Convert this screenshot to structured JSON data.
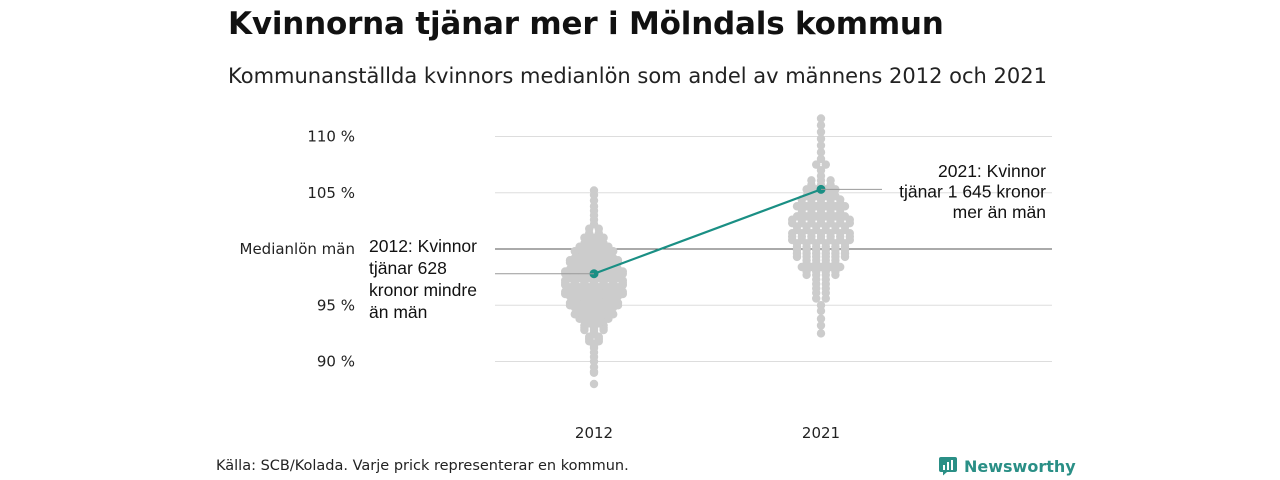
{
  "title": "Kvinnorna tjänar mer i Mölndals kommun",
  "subtitle": "Kommunanställda kvinnors medianlön som andel av männens 2012 och 2021",
  "source": "Källa: SCB/Kolada. Varje prick representerar en kommun.",
  "brand": "Newsworthy",
  "colors": {
    "dots": "#cccccc",
    "highlight": "#1a8f84",
    "grid": "#dddddd",
    "refline": "#555555",
    "brand": "#2a8f86"
  },
  "chart_data": {
    "type": "scatter",
    "subtype": "beeswarm",
    "categories": [
      "2012",
      "2021"
    ],
    "y_ticks": [
      {
        "value": 90,
        "label": "90 %"
      },
      {
        "value": 95,
        "label": "95 %"
      },
      {
        "value": 100,
        "label": "Medianlön män"
      },
      {
        "value": 105,
        "label": "105 %"
      },
      {
        "value": 110,
        "label": "110 %"
      }
    ],
    "ylim": [
      86,
      111.5
    ],
    "grid": true,
    "highlight": {
      "name": "Mölndal",
      "values": [
        97.8,
        105.3
      ]
    },
    "distributions": [
      {
        "category": "2012",
        "values": [
          88.0,
          89.0,
          89.1,
          89.5,
          90.0,
          90.4,
          90.8,
          91.2,
          91.4,
          91.6,
          91.8,
          92.0,
          92.2,
          92.4,
          92.6,
          92.8,
          93.0,
          93.2,
          93.4,
          93.6,
          93.8,
          94.0,
          94.2,
          94.4,
          94.6,
          94.8,
          95.0,
          95.2,
          95.4,
          95.6,
          95.8,
          96.0,
          96.2,
          96.4,
          96.6,
          96.8,
          97.0,
          97.2,
          97.4,
          97.6,
          97.8,
          98.0,
          98.2,
          98.4,
          98.6,
          98.8,
          99.0,
          99.2,
          99.4,
          99.6,
          99.8,
          100.0,
          100.2,
          100.5,
          100.8,
          101.0,
          101.4,
          101.8,
          102.2,
          102.6,
          103.0,
          103.4,
          103.8,
          104.3,
          104.8,
          105.2
        ]
      },
      {
        "category": "2021",
        "values": [
          92.5,
          93.2,
          93.8,
          94.5,
          95.0,
          95.6,
          96.1,
          96.5,
          96.9,
          97.3,
          97.7,
          98.0,
          98.4,
          98.7,
          99.0,
          99.3,
          99.6,
          99.9,
          100.2,
          100.5,
          100.8,
          101.1,
          101.4,
          101.7,
          102.0,
          102.3,
          102.6,
          102.9,
          103.2,
          103.5,
          103.8,
          104.1,
          104.4,
          104.7,
          105.0,
          105.3,
          105.7,
          106.1,
          106.5,
          107.0,
          107.5,
          108.0,
          108.6,
          109.2,
          109.8,
          110.4,
          111.0,
          111.6
        ]
      }
    ],
    "annotations": [
      {
        "category": "2012",
        "lines": [
          "2012: Kvinnor",
          "tjänar 628",
          "kronor mindre",
          "än män"
        ]
      },
      {
        "category": "2021",
        "lines": [
          "2021: Kvinnor",
          "tjänar 1 645 kronor",
          "mer än män"
        ]
      }
    ]
  }
}
